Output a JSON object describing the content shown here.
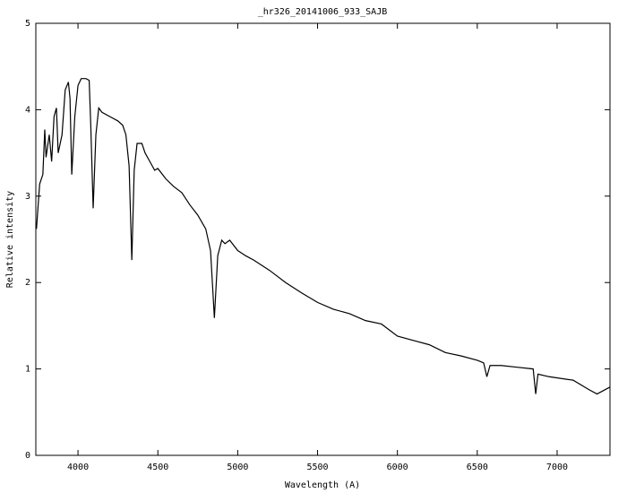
{
  "chart_data": {
    "type": "line",
    "title": "_hr326_20141006_933_SAJB",
    "x_label": "Wavelength (A)",
    "y_label": "Relative intensity",
    "xlim": [
      3736,
      7331
    ],
    "ylim": [
      0,
      5
    ],
    "xticks": [
      4000,
      4500,
      5000,
      5500,
      6000,
      6500,
      7000
    ],
    "yticks": [
      0,
      1,
      2,
      3,
      4,
      5
    ],
    "grid": false,
    "series": [
      {
        "color": "#000000",
        "x": [
          3740,
          3760,
          3780,
          3792,
          3800,
          3820,
          3835,
          3850,
          3865,
          3876,
          3900,
          3920,
          3940,
          3950,
          3961,
          3980,
          4000,
          4020,
          4050,
          4070,
          4080,
          4095,
          4112,
          4130,
          4150,
          4200,
          4250,
          4280,
          4300,
          4320,
          4337,
          4352,
          4370,
          4400,
          4420,
          4450,
          4480,
          4500,
          4550,
          4600,
          4650,
          4700,
          4750,
          4800,
          4830,
          4854,
          4875,
          4900,
          4920,
          4950,
          5000,
          5050,
          5100,
          5200,
          5300,
          5400,
          5500,
          5600,
          5700,
          5800,
          5900,
          6000,
          6100,
          6200,
          6300,
          6400,
          6500,
          6540,
          6560,
          6580,
          6650,
          6750,
          6850,
          6866,
          6880,
          6950,
          7100,
          7200,
          7250,
          7331
        ],
        "values": [
          2.62,
          3.14,
          3.25,
          3.77,
          3.45,
          3.71,
          3.4,
          3.92,
          4.02,
          3.5,
          3.71,
          4.23,
          4.32,
          4.13,
          3.25,
          3.92,
          4.28,
          4.36,
          4.36,
          4.34,
          3.82,
          2.86,
          3.71,
          4.02,
          3.97,
          3.92,
          3.87,
          3.82,
          3.71,
          3.35,
          2.26,
          3.3,
          3.61,
          3.61,
          3.5,
          3.4,
          3.3,
          3.32,
          3.2,
          3.11,
          3.04,
          2.9,
          2.78,
          2.62,
          2.37,
          1.59,
          2.31,
          2.49,
          2.45,
          2.49,
          2.37,
          2.31,
          2.26,
          2.14,
          2.0,
          1.88,
          1.77,
          1.69,
          1.64,
          1.56,
          1.52,
          1.38,
          1.33,
          1.28,
          1.19,
          1.15,
          1.1,
          1.07,
          0.91,
          1.04,
          1.04,
          1.02,
          1.0,
          0.71,
          0.94,
          0.91,
          0.87,
          0.76,
          0.71,
          0.79
        ]
      }
    ]
  }
}
